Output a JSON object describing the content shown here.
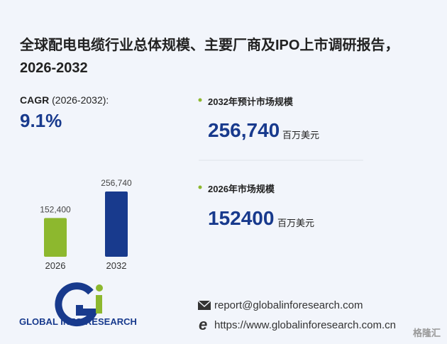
{
  "title": "全球配电电缆行业总体规模、主要厂商及IPO上市调研报告，2026-2032",
  "cagr": {
    "label": "CAGR",
    "period": "(2026-2032):",
    "value": "9.1%"
  },
  "stats": [
    {
      "label": "2032年预计市场规模",
      "value": "256,740",
      "unit": "百万美元"
    },
    {
      "label": "2026年市场规模",
      "value": "152400",
      "unit": "百万美元"
    }
  ],
  "chart_data": {
    "type": "bar",
    "categories": [
      "2026",
      "2032"
    ],
    "values": [
      152400,
      256740
    ],
    "value_labels": [
      "152,400",
      "256,740"
    ],
    "colors": [
      "#8db82e",
      "#183a8d"
    ]
  },
  "logo": "GLOBAL INFO RESEARCH",
  "contact": {
    "email": "report@globalinforesearch.com",
    "website": "https://www.globalinforesearch.com.cn"
  },
  "badge": "格隆汇"
}
